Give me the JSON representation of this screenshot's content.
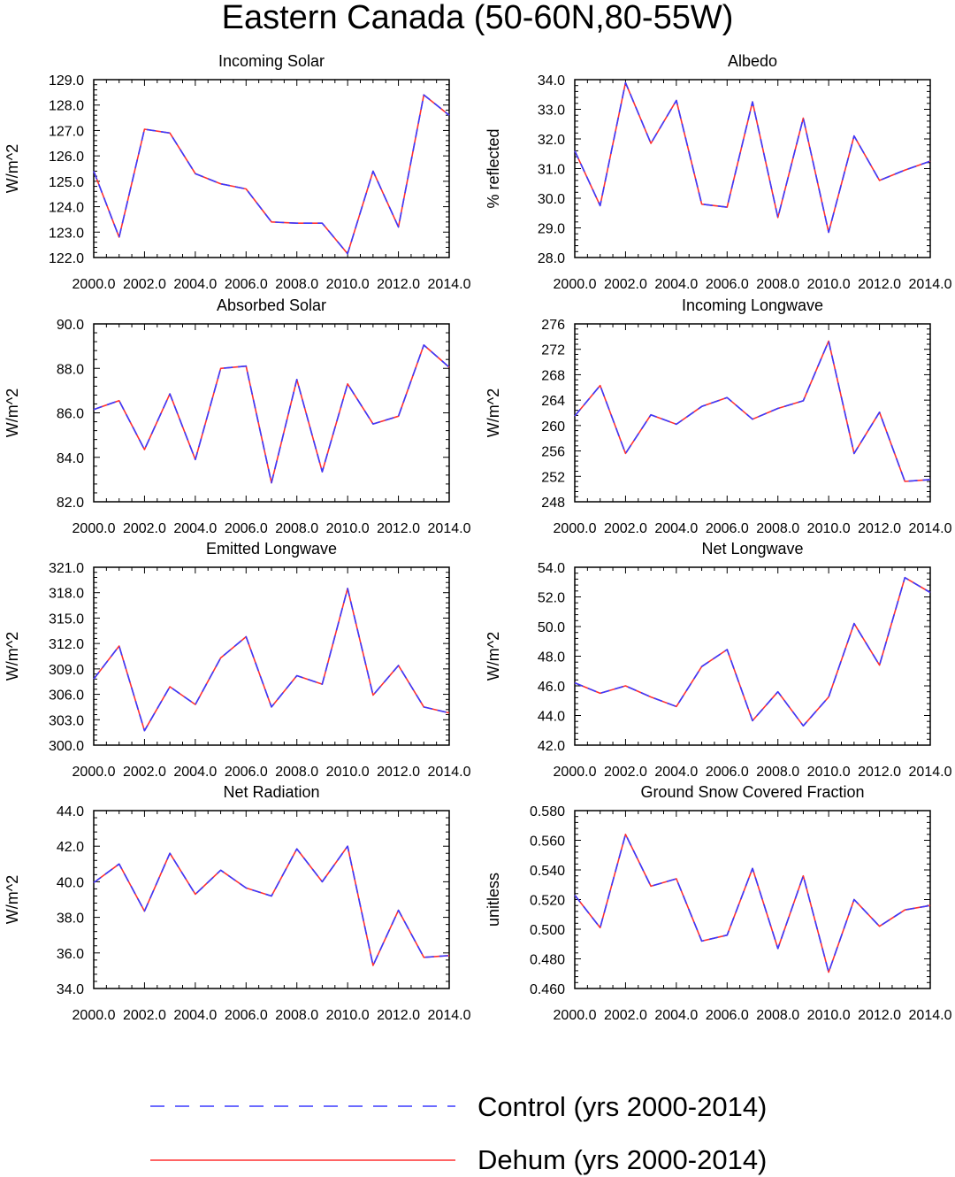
{
  "figure_title": "Eastern Canada (50-60N,80-55W)",
  "legend": [
    {
      "label": "Control (yrs 2000-2014)",
      "color": "#3a3aff",
      "style": "dashed"
    },
    {
      "label": "Dehum (yrs 2000-2014)",
      "color": "#ff3030",
      "style": "solid"
    }
  ],
  "chart_data": [
    {
      "type": "line",
      "title": "Incoming Solar",
      "ylabel": "W/m^2",
      "xlim": [
        2000,
        2014
      ],
      "ylim": [
        122,
        129
      ],
      "xticks": [
        2000,
        2002,
        2004,
        2006,
        2008,
        2010,
        2012,
        2014
      ],
      "yticks": [
        122.0,
        123.0,
        124.0,
        125.0,
        126.0,
        127.0,
        128.0,
        129.0
      ],
      "x_tick_labels": [
        "2000.0",
        "2002.0",
        "2004.0",
        "2006.0",
        "2008.0",
        "2010.0",
        "2012.0",
        "2014.0"
      ],
      "y_tick_labels": [
        "122.0",
        "123.0",
        "124.0",
        "125.0",
        "126.0",
        "127.0",
        "128.0",
        "129.0"
      ],
      "x": [
        2000,
        2001,
        2002,
        2003,
        2004,
        2005,
        2006,
        2007,
        2008,
        2009,
        2010,
        2011,
        2012,
        2013,
        2014
      ],
      "series": [
        {
          "name": "Control (yrs 2000-2014)",
          "values": [
            125.4,
            122.8,
            127.05,
            126.9,
            125.3,
            124.9,
            124.7,
            123.4,
            123.35,
            123.35,
            122.15,
            125.4,
            123.2,
            128.4,
            127.6
          ]
        },
        {
          "name": "Dehum (yrs 2000-2014)",
          "values": [
            125.4,
            122.8,
            127.05,
            126.9,
            125.3,
            124.9,
            124.7,
            123.4,
            123.35,
            123.35,
            122.15,
            125.4,
            123.2,
            128.4,
            127.6
          ]
        }
      ]
    },
    {
      "type": "line",
      "title": "Albedo",
      "ylabel": "% reflected",
      "xlim": [
        2000,
        2014
      ],
      "ylim": [
        28,
        34
      ],
      "xticks": [
        2000,
        2002,
        2004,
        2006,
        2008,
        2010,
        2012,
        2014
      ],
      "yticks": [
        28.0,
        29.0,
        30.0,
        31.0,
        32.0,
        33.0,
        34.0
      ],
      "x_tick_labels": [
        "2000.0",
        "2002.0",
        "2004.0",
        "2006.0",
        "2008.0",
        "2010.0",
        "2012.0",
        "2014.0"
      ],
      "y_tick_labels": [
        "28.0",
        "29.0",
        "30.0",
        "31.0",
        "32.0",
        "33.0",
        "34.0"
      ],
      "x": [
        2000,
        2001,
        2002,
        2003,
        2004,
        2005,
        2006,
        2007,
        2008,
        2009,
        2010,
        2011,
        2012,
        2013,
        2014
      ],
      "series": [
        {
          "name": "Control (yrs 2000-2014)",
          "values": [
            31.6,
            29.75,
            33.9,
            31.85,
            33.3,
            29.8,
            29.7,
            33.25,
            29.35,
            32.7,
            28.85,
            32.1,
            30.6,
            30.95,
            31.25
          ]
        },
        {
          "name": "Dehum (yrs 2000-2014)",
          "values": [
            31.6,
            29.75,
            33.9,
            31.85,
            33.3,
            29.8,
            29.7,
            33.25,
            29.35,
            32.7,
            28.85,
            32.1,
            30.6,
            30.95,
            31.25
          ]
        }
      ]
    },
    {
      "type": "line",
      "title": "Absorbed Solar",
      "ylabel": "W/m^2",
      "xlim": [
        2000,
        2014
      ],
      "ylim": [
        82,
        90
      ],
      "xticks": [
        2000,
        2002,
        2004,
        2006,
        2008,
        2010,
        2012,
        2014
      ],
      "yticks": [
        82.0,
        84.0,
        86.0,
        88.0,
        90.0
      ],
      "x_tick_labels": [
        "2000.0",
        "2002.0",
        "2004.0",
        "2006.0",
        "2008.0",
        "2010.0",
        "2012.0",
        "2014.0"
      ],
      "y_tick_labels": [
        "82.0",
        "84.0",
        "86.0",
        "88.0",
        "90.0"
      ],
      "x": [
        2000,
        2001,
        2002,
        2003,
        2004,
        2005,
        2006,
        2007,
        2008,
        2009,
        2010,
        2011,
        2012,
        2013,
        2014
      ],
      "series": [
        {
          "name": "Control (yrs 2000-2014)",
          "values": [
            86.15,
            86.55,
            84.35,
            86.85,
            83.9,
            88.0,
            88.1,
            82.85,
            87.5,
            83.35,
            87.3,
            85.5,
            85.85,
            89.05,
            88.05
          ]
        },
        {
          "name": "Dehum (yrs 2000-2014)",
          "values": [
            86.15,
            86.55,
            84.35,
            86.85,
            83.9,
            88.0,
            88.1,
            82.85,
            87.5,
            83.35,
            87.3,
            85.5,
            85.85,
            89.05,
            88.05
          ]
        }
      ]
    },
    {
      "type": "line",
      "title": "Incoming Longwave",
      "ylabel": "W/m^2",
      "xlim": [
        2000,
        2014
      ],
      "ylim": [
        248,
        276
      ],
      "xticks": [
        2000,
        2002,
        2004,
        2006,
        2008,
        2010,
        2012,
        2014
      ],
      "yticks": [
        248,
        252,
        256,
        260,
        264,
        268,
        272,
        276
      ],
      "x_tick_labels": [
        "2000.0",
        "2002.0",
        "2004.0",
        "2006.0",
        "2008.0",
        "2010.0",
        "2012.0",
        "2014.0"
      ],
      "y_tick_labels": [
        "248",
        "252",
        "256",
        "260",
        "264",
        "268",
        "272",
        "276"
      ],
      "x": [
        2000,
        2001,
        2002,
        2003,
        2004,
        2005,
        2006,
        2007,
        2008,
        2009,
        2010,
        2011,
        2012,
        2013,
        2014
      ],
      "series": [
        {
          "name": "Control (yrs 2000-2014)",
          "values": [
            261.5,
            266.3,
            255.6,
            261.7,
            260.2,
            263.0,
            264.4,
            261.0,
            262.7,
            263.9,
            273.3,
            255.6,
            262.1,
            251.2,
            251.5
          ]
        },
        {
          "name": "Dehum (yrs 2000-2014)",
          "values": [
            261.5,
            266.3,
            255.6,
            261.7,
            260.2,
            263.0,
            264.4,
            261.0,
            262.7,
            263.9,
            273.3,
            255.6,
            262.1,
            251.2,
            251.5
          ]
        }
      ]
    },
    {
      "type": "line",
      "title": "Emitted Longwave",
      "ylabel": "W/m^2",
      "xlim": [
        2000,
        2014
      ],
      "ylim": [
        300,
        321
      ],
      "xticks": [
        2000,
        2002,
        2004,
        2006,
        2008,
        2010,
        2012,
        2014
      ],
      "yticks": [
        300.0,
        303.0,
        306.0,
        309.0,
        312.0,
        315.0,
        318.0,
        321.0
      ],
      "x_tick_labels": [
        "2000.0",
        "2002.0",
        "2004.0",
        "2006.0",
        "2008.0",
        "2010.0",
        "2012.0",
        "2014.0"
      ],
      "y_tick_labels": [
        "300.0",
        "303.0",
        "306.0",
        "309.0",
        "312.0",
        "315.0",
        "318.0",
        "321.0"
      ],
      "x": [
        2000,
        2001,
        2002,
        2003,
        2004,
        2005,
        2006,
        2007,
        2008,
        2009,
        2010,
        2011,
        2012,
        2013,
        2014
      ],
      "series": [
        {
          "name": "Control (yrs 2000-2014)",
          "values": [
            307.8,
            311.7,
            301.7,
            306.9,
            304.8,
            310.3,
            312.8,
            304.5,
            308.2,
            307.2,
            318.5,
            305.9,
            309.4,
            304.5,
            303.8
          ]
        },
        {
          "name": "Dehum (yrs 2000-2014)",
          "values": [
            307.8,
            311.7,
            301.7,
            306.9,
            304.8,
            310.3,
            312.8,
            304.5,
            308.2,
            307.2,
            318.5,
            305.9,
            309.4,
            304.5,
            303.8
          ]
        }
      ]
    },
    {
      "type": "line",
      "title": "Net Longwave",
      "ylabel": "W/m^2",
      "xlim": [
        2000,
        2014
      ],
      "ylim": [
        42,
        54
      ],
      "xticks": [
        2000,
        2002,
        2004,
        2006,
        2008,
        2010,
        2012,
        2014
      ],
      "yticks": [
        42.0,
        44.0,
        46.0,
        48.0,
        50.0,
        52.0,
        54.0
      ],
      "x_tick_labels": [
        "2000.0",
        "2002.0",
        "2004.0",
        "2006.0",
        "2008.0",
        "2010.0",
        "2012.0",
        "2014.0"
      ],
      "y_tick_labels": [
        "42.0",
        "44.0",
        "46.0",
        "48.0",
        "50.0",
        "52.0",
        "54.0"
      ],
      "x": [
        2000,
        2001,
        2002,
        2003,
        2004,
        2005,
        2006,
        2007,
        2008,
        2009,
        2010,
        2011,
        2012,
        2013,
        2014
      ],
      "series": [
        {
          "name": "Control (yrs 2000-2014)",
          "values": [
            46.2,
            45.5,
            46.0,
            45.25,
            44.6,
            47.3,
            48.45,
            43.65,
            45.6,
            43.3,
            45.25,
            50.2,
            47.4,
            53.3,
            52.3
          ]
        },
        {
          "name": "Dehum (yrs 2000-2014)",
          "values": [
            46.2,
            45.5,
            46.0,
            45.25,
            44.6,
            47.3,
            48.45,
            43.65,
            45.6,
            43.3,
            45.25,
            50.2,
            47.4,
            53.3,
            52.3
          ]
        }
      ]
    },
    {
      "type": "line",
      "title": "Net Radiation",
      "ylabel": "W/m^2",
      "xlim": [
        2000,
        2014
      ],
      "ylim": [
        34,
        44
      ],
      "xticks": [
        2000,
        2002,
        2004,
        2006,
        2008,
        2010,
        2012,
        2014
      ],
      "yticks": [
        34.0,
        36.0,
        38.0,
        40.0,
        42.0,
        44.0
      ],
      "x_tick_labels": [
        "2000.0",
        "2002.0",
        "2004.0",
        "2006.0",
        "2008.0",
        "2010.0",
        "2012.0",
        "2014.0"
      ],
      "y_tick_labels": [
        "34.0",
        "36.0",
        "38.0",
        "40.0",
        "42.0",
        "44.0"
      ],
      "x": [
        2000,
        2001,
        2002,
        2003,
        2004,
        2005,
        2006,
        2007,
        2008,
        2009,
        2010,
        2011,
        2012,
        2013,
        2014
      ],
      "series": [
        {
          "name": "Control (yrs 2000-2014)",
          "values": [
            39.95,
            41.0,
            38.35,
            41.6,
            39.3,
            40.65,
            39.65,
            39.2,
            41.85,
            40.0,
            42.0,
            35.3,
            38.4,
            35.75,
            35.85
          ]
        },
        {
          "name": "Dehum (yrs 2000-2014)",
          "values": [
            39.95,
            41.0,
            38.35,
            41.6,
            39.3,
            40.65,
            39.65,
            39.2,
            41.85,
            40.0,
            42.0,
            35.3,
            38.4,
            35.75,
            35.85
          ]
        }
      ]
    },
    {
      "type": "line",
      "title": "Ground Snow Covered Fraction",
      "ylabel": "unitless",
      "xlim": [
        2000,
        2014
      ],
      "ylim": [
        0.46,
        0.58
      ],
      "xticks": [
        2000,
        2002,
        2004,
        2006,
        2008,
        2010,
        2012,
        2014
      ],
      "yticks": [
        0.46,
        0.48,
        0.5,
        0.52,
        0.54,
        0.56,
        0.58
      ],
      "x_tick_labels": [
        "2000.0",
        "2002.0",
        "2004.0",
        "2006.0",
        "2008.0",
        "2010.0",
        "2012.0",
        "2014.0"
      ],
      "y_tick_labels": [
        "0.460",
        "0.480",
        "0.500",
        "0.520",
        "0.540",
        "0.560",
        "0.580"
      ],
      "x": [
        2000,
        2001,
        2002,
        2003,
        2004,
        2005,
        2006,
        2007,
        2008,
        2009,
        2010,
        2011,
        2012,
        2013,
        2014
      ],
      "series": [
        {
          "name": "Control (yrs 2000-2014)",
          "values": [
            0.523,
            0.501,
            0.564,
            0.529,
            0.534,
            0.492,
            0.496,
            0.541,
            0.487,
            0.536,
            0.471,
            0.52,
            0.502,
            0.513,
            0.516
          ]
        },
        {
          "name": "Dehum (yrs 2000-2014)",
          "values": [
            0.523,
            0.501,
            0.564,
            0.529,
            0.534,
            0.492,
            0.496,
            0.541,
            0.487,
            0.536,
            0.471,
            0.52,
            0.502,
            0.513,
            0.516
          ]
        }
      ]
    }
  ]
}
